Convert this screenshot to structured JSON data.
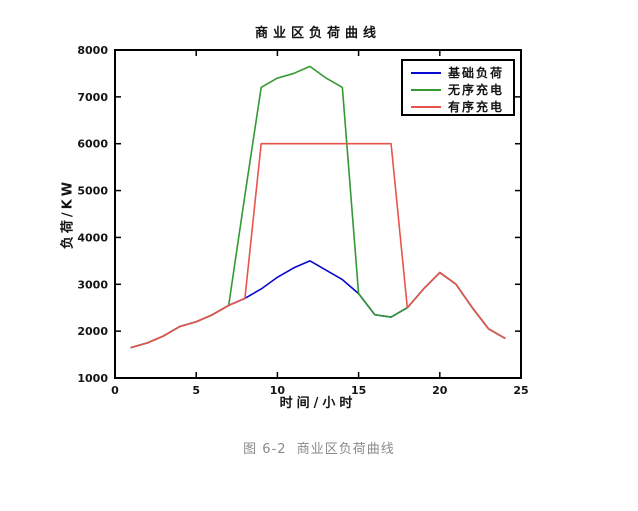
{
  "figure": {
    "caption": "图 6-2  商业区负荷曲线"
  },
  "chart_data": {
    "type": "line",
    "title": "商业区负荷曲线",
    "xlabel": "时间/小时",
    "ylabel": "负荷/KW",
    "xlim": [
      0,
      25
    ],
    "ylim": [
      1000,
      8000
    ],
    "xticks": [
      0,
      5,
      10,
      15,
      20,
      25
    ],
    "yticks": [
      1000,
      2000,
      3000,
      4000,
      5000,
      6000,
      7000,
      8000
    ],
    "grid": false,
    "legend_position": "top-right",
    "x": [
      1,
      2,
      3,
      4,
      5,
      6,
      7,
      8,
      9,
      10,
      11,
      12,
      13,
      14,
      15,
      16,
      17,
      18,
      19,
      20,
      21,
      22,
      23,
      24
    ],
    "series": [
      {
        "id": "base-load",
        "name": "基础负荷",
        "color": "#0808D0",
        "values": [
          1650,
          1750,
          1900,
          2100,
          2200,
          2350,
          2550,
          2700,
          2900,
          3150,
          3350,
          3500,
          3300,
          3100,
          2800,
          2350,
          2300,
          2500,
          2900,
          3250,
          3000,
          2500,
          2050,
          1850
        ]
      },
      {
        "id": "uncoordinated-charging",
        "name": "无序充电",
        "color": "#339933",
        "values": [
          1650,
          1750,
          1900,
          2100,
          2200,
          2350,
          2550,
          4900,
          7200,
          7400,
          7500,
          7650,
          7400,
          7200,
          2800,
          2350,
          2300,
          2500,
          2900,
          3250,
          3000,
          2500,
          2050,
          1850
        ]
      },
      {
        "id": "coordinated-charging",
        "name": "有序充电",
        "color": "#E8544A",
        "values": [
          1650,
          1750,
          1900,
          2100,
          2200,
          2350,
          2550,
          2700,
          6000,
          6000,
          6000,
          6000,
          6000,
          6000,
          6000,
          6000,
          6000,
          2500,
          2900,
          3250,
          3000,
          2500,
          2050,
          1850
        ]
      }
    ]
  }
}
